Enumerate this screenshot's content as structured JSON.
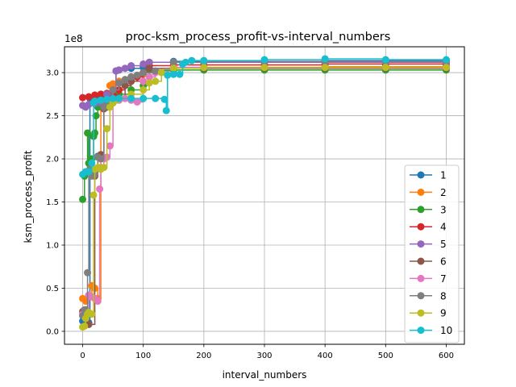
{
  "chart_data": {
    "type": "line",
    "title": "proc-ksm_process_profit-vs-interval_numbers",
    "xlabel": "interval_numbers",
    "ylabel": "ksm_process_profit",
    "y_offset_label": "1e8",
    "y_multiplier": 100000000,
    "xlim": [
      -30,
      630
    ],
    "ylim": [
      -0.15,
      3.3
    ],
    "x_ticks": [
      0,
      100,
      200,
      300,
      400,
      500,
      600
    ],
    "y_ticks": [
      0.0,
      0.5,
      1.0,
      1.5,
      2.0,
      2.5,
      3.0
    ],
    "x_tick_labels": [
      "0",
      "100",
      "200",
      "300",
      "400",
      "500",
      "600"
    ],
    "y_tick_labels": [
      "0.0",
      "0.5",
      "1.0",
      "1.5",
      "2.0",
      "2.5",
      "3.0"
    ],
    "grid": true,
    "legend_position": "lower-right",
    "marker": "circle",
    "series": [
      {
        "name": "1",
        "color": "#1f77b4",
        "points": [
          [
            0,
            0.12
          ],
          [
            2,
            0.1
          ],
          [
            5,
            0.15
          ],
          [
            8,
            0.09
          ],
          [
            10,
            0.1
          ],
          [
            12,
            2.7
          ],
          [
            20,
            2.72
          ],
          [
            30,
            2.73
          ],
          [
            40,
            2.74
          ],
          [
            50,
            2.75
          ],
          [
            55,
            3.02
          ],
          [
            60,
            3.03
          ],
          [
            80,
            3.05
          ],
          [
            100,
            3.06
          ],
          [
            110,
            3.12
          ],
          [
            150,
            3.13
          ],
          [
            200,
            3.13
          ],
          [
            300,
            3.13
          ],
          [
            400,
            3.14
          ],
          [
            500,
            3.14
          ],
          [
            600,
            3.14
          ]
        ]
      },
      {
        "name": "2",
        "color": "#ff7f0e",
        "points": [
          [
            0,
            0.38
          ],
          [
            5,
            0.35
          ],
          [
            10,
            0.4
          ],
          [
            15,
            0.53
          ],
          [
            20,
            0.5
          ],
          [
            25,
            0.38
          ],
          [
            30,
            2.6
          ],
          [
            35,
            2.62
          ],
          [
            40,
            2.65
          ],
          [
            45,
            2.85
          ],
          [
            50,
            2.87
          ],
          [
            60,
            2.9
          ],
          [
            80,
            2.95
          ],
          [
            100,
            2.98
          ],
          [
            110,
            3.05
          ],
          [
            150,
            3.06
          ],
          [
            200,
            3.06
          ],
          [
            300,
            3.06
          ],
          [
            400,
            3.07
          ],
          [
            500,
            3.07
          ],
          [
            600,
            3.07
          ]
        ]
      },
      {
        "name": "3",
        "color": "#2ca02c",
        "points": [
          [
            0,
            1.53
          ],
          [
            3,
            1.8
          ],
          [
            5,
            1.85
          ],
          [
            8,
            2.3
          ],
          [
            10,
            1.95
          ],
          [
            15,
            2.0
          ],
          [
            18,
            2.26
          ],
          [
            20,
            2.3
          ],
          [
            22,
            2.5
          ],
          [
            25,
            2.6
          ],
          [
            30,
            2.65
          ],
          [
            40,
            2.7
          ],
          [
            50,
            2.72
          ],
          [
            60,
            2.75
          ],
          [
            80,
            2.8
          ],
          [
            100,
            2.85
          ],
          [
            110,
            3.03
          ],
          [
            150,
            3.03
          ],
          [
            200,
            3.03
          ],
          [
            300,
            3.03
          ],
          [
            400,
            3.03
          ],
          [
            500,
            3.03
          ],
          [
            600,
            3.03
          ]
        ]
      },
      {
        "name": "4",
        "color": "#d62728",
        "points": [
          [
            0,
            2.71
          ],
          [
            10,
            2.72
          ],
          [
            20,
            2.74
          ],
          [
            30,
            2.75
          ],
          [
            40,
            2.76
          ],
          [
            50,
            2.74
          ],
          [
            60,
            2.8
          ],
          [
            70,
            2.85
          ],
          [
            80,
            2.9
          ],
          [
            90,
            2.95
          ],
          [
            100,
            3.0
          ],
          [
            110,
            3.08
          ],
          [
            150,
            3.09
          ],
          [
            200,
            3.09
          ],
          [
            300,
            3.09
          ],
          [
            400,
            3.1
          ],
          [
            500,
            3.1
          ],
          [
            600,
            3.1
          ]
        ]
      },
      {
        "name": "5",
        "color": "#9467bd",
        "points": [
          [
            0,
            2.62
          ],
          [
            5,
            2.6
          ],
          [
            10,
            2.63
          ],
          [
            20,
            2.64
          ],
          [
            30,
            2.65
          ],
          [
            40,
            2.75
          ],
          [
            50,
            2.8
          ],
          [
            55,
            3.02
          ],
          [
            60,
            3.03
          ],
          [
            70,
            3.05
          ],
          [
            80,
            3.08
          ],
          [
            100,
            3.1
          ],
          [
            110,
            3.12
          ],
          [
            150,
            3.12
          ],
          [
            200,
            3.12
          ],
          [
            300,
            3.12
          ],
          [
            400,
            3.12
          ],
          [
            500,
            3.12
          ],
          [
            600,
            3.12
          ]
        ]
      },
      {
        "name": "6",
        "color": "#8c564b",
        "points": [
          [
            0,
            0.23
          ],
          [
            5,
            0.25
          ],
          [
            10,
            0.08
          ],
          [
            20,
            1.8
          ],
          [
            25,
            2.03
          ],
          [
            30,
            2.05
          ],
          [
            35,
            2.58
          ],
          [
            40,
            2.6
          ],
          [
            50,
            2.65
          ],
          [
            60,
            2.7
          ],
          [
            70,
            2.85
          ],
          [
            80,
            2.9
          ],
          [
            100,
            3.0
          ],
          [
            110,
            3.05
          ],
          [
            150,
            3.05
          ],
          [
            200,
            3.05
          ],
          [
            300,
            3.05
          ],
          [
            400,
            3.05
          ],
          [
            500,
            3.05
          ],
          [
            600,
            3.05
          ]
        ]
      },
      {
        "name": "7",
        "color": "#e377c2",
        "points": [
          [
            0,
            0.2
          ],
          [
            5,
            0.22
          ],
          [
            10,
            0.42
          ],
          [
            15,
            0.4
          ],
          [
            20,
            0.38
          ],
          [
            25,
            0.35
          ],
          [
            28,
            1.65
          ],
          [
            30,
            1.9
          ],
          [
            35,
            2.0
          ],
          [
            40,
            2.02
          ],
          [
            45,
            2.15
          ],
          [
            50,
            2.65
          ],
          [
            60,
            2.68
          ],
          [
            70,
            2.7
          ],
          [
            80,
            2.68
          ],
          [
            90,
            2.66
          ],
          [
            100,
            2.9
          ],
          [
            110,
            2.95
          ],
          [
            120,
            3.0
          ],
          [
            150,
            3.06
          ],
          [
            200,
            3.06
          ],
          [
            300,
            3.06
          ],
          [
            400,
            3.06
          ],
          [
            500,
            3.06
          ],
          [
            600,
            3.06
          ]
        ]
      },
      {
        "name": "8",
        "color": "#7f7f7f",
        "points": [
          [
            0,
            0.18
          ],
          [
            3,
            0.25
          ],
          [
            8,
            0.68
          ],
          [
            10,
            1.85
          ],
          [
            12,
            1.88
          ],
          [
            15,
            1.8
          ],
          [
            20,
            1.82
          ],
          [
            25,
            2.02
          ],
          [
            30,
            2.0
          ],
          [
            35,
            2.6
          ],
          [
            40,
            2.62
          ],
          [
            50,
            2.8
          ],
          [
            60,
            2.88
          ],
          [
            70,
            2.92
          ],
          [
            80,
            2.95
          ],
          [
            90,
            2.97
          ],
          [
            100,
            3.0
          ],
          [
            120,
            3.02
          ],
          [
            150,
            3.12
          ],
          [
            200,
            3.13
          ],
          [
            300,
            3.13
          ],
          [
            400,
            3.13
          ],
          [
            500,
            3.13
          ],
          [
            600,
            3.13
          ]
        ]
      },
      {
        "name": "9",
        "color": "#bcbd22",
        "points": [
          [
            0,
            0.05
          ],
          [
            3,
            0.06
          ],
          [
            5,
            0.15
          ],
          [
            8,
            0.2
          ],
          [
            10,
            0.22
          ],
          [
            15,
            0.2
          ],
          [
            18,
            1.58
          ],
          [
            20,
            1.88
          ],
          [
            25,
            1.9
          ],
          [
            30,
            1.88
          ],
          [
            35,
            1.9
          ],
          [
            40,
            2.35
          ],
          [
            45,
            2.6
          ],
          [
            50,
            2.65
          ],
          [
            60,
            2.7
          ],
          [
            80,
            2.75
          ],
          [
            100,
            2.8
          ],
          [
            110,
            2.88
          ],
          [
            120,
            2.9
          ],
          [
            130,
            3.0
          ],
          [
            150,
            3.05
          ],
          [
            200,
            3.06
          ],
          [
            300,
            3.06
          ],
          [
            400,
            3.06
          ],
          [
            500,
            3.06
          ],
          [
            600,
            3.06
          ]
        ]
      },
      {
        "name": "10",
        "color": "#17becf",
        "points": [
          [
            0,
            1.82
          ],
          [
            5,
            1.85
          ],
          [
            10,
            1.85
          ],
          [
            15,
            1.95
          ],
          [
            18,
            2.65
          ],
          [
            20,
            2.67
          ],
          [
            30,
            2.68
          ],
          [
            40,
            2.69
          ],
          [
            50,
            2.7
          ],
          [
            60,
            2.7
          ],
          [
            80,
            2.7
          ],
          [
            100,
            2.7
          ],
          [
            120,
            2.7
          ],
          [
            135,
            2.69
          ],
          [
            138,
            2.56
          ],
          [
            140,
            2.97
          ],
          [
            150,
            2.98
          ],
          [
            160,
            2.98
          ],
          [
            165,
            3.1
          ],
          [
            170,
            3.12
          ],
          [
            180,
            3.14
          ],
          [
            200,
            3.14
          ],
          [
            300,
            3.15
          ],
          [
            400,
            3.16
          ],
          [
            500,
            3.15
          ],
          [
            600,
            3.15
          ]
        ]
      }
    ]
  }
}
